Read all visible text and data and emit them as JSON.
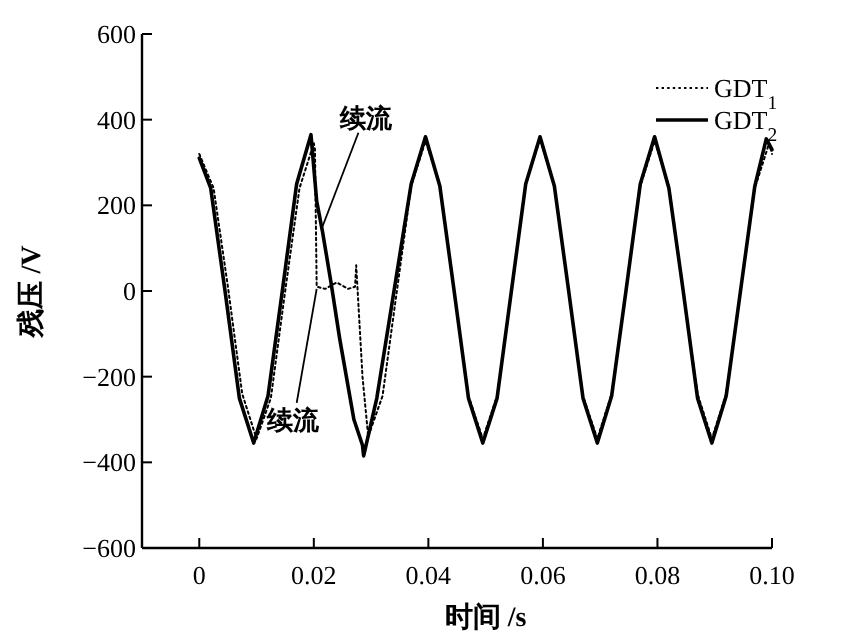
{
  "chart_data": {
    "type": "line",
    "xlabel": "时间 /s",
    "ylabel": "残压 /V",
    "xlim": [
      -0.01,
      0.1
    ],
    "xticks": [
      0,
      0.02,
      0.04,
      0.06,
      0.08,
      {
        "value": 0.1,
        "label": "0.10"
      }
    ],
    "ylim": [
      -600,
      600
    ],
    "yticks": [
      -600,
      -400,
      -200,
      0,
      200,
      400,
      600
    ],
    "grid": false,
    "legend": "top right",
    "marker": "none",
    "series": [
      {
        "name": "GDT$_{1}$",
        "color": "#000000",
        "line_style": "dotted",
        "x": [
          0,
          0.0025,
          0.005,
          0.0075,
          0.01,
          0.0125,
          0.015,
          0.0175,
          0.02,
          0.0202,
          0.0205,
          0.022,
          0.024,
          0.026,
          0.0272,
          0.0274,
          0.0285,
          0.0295,
          0.032,
          0.0345,
          0.037,
          0.0395,
          0.042,
          0.0445,
          0.047,
          0.0495,
          0.052,
          0.0545,
          0.057,
          0.0595,
          0.062,
          0.0645,
          0.067,
          0.0695,
          0.072,
          0.0745,
          0.077,
          0.0795,
          0.082,
          0.0845,
          0.087,
          0.0895,
          0.092,
          0.0945,
          0.097,
          0.0995,
          0.1
        ],
        "values": [
          320,
          240,
          10,
          -240,
          -345,
          -250,
          0,
          240,
          345,
          330,
          10,
          5,
          20,
          5,
          10,
          60,
          -200,
          -340,
          -245,
          0,
          245,
          350,
          250,
          0,
          -245,
          -345,
          -245,
          0,
          250,
          355,
          245,
          0,
          -245,
          -345,
          -240,
          0,
          245,
          350,
          245,
          0,
          -240,
          -345,
          -240,
          0,
          240,
          345,
          320
        ]
      },
      {
        "name": "GDT$_{2}$",
        "color": "#000000",
        "line_style": "solid",
        "x": [
          0,
          0.002,
          0.0045,
          0.007,
          0.0095,
          0.012,
          0.0145,
          0.017,
          0.0195,
          0.0205,
          0.0215,
          0.023,
          0.0245,
          0.027,
          0.0285,
          0.0287,
          0.031,
          0.034,
          0.037,
          0.0395,
          0.042,
          0.0445,
          0.047,
          0.0495,
          0.052,
          0.0545,
          0.057,
          0.0595,
          0.062,
          0.0645,
          0.067,
          0.0695,
          0.072,
          0.0745,
          0.077,
          0.0795,
          0.082,
          0.0845,
          0.087,
          0.0895,
          0.092,
          0.0945,
          0.097,
          0.099,
          0.1
        ],
        "values": [
          310,
          240,
          0,
          -250,
          -355,
          -245,
          0,
          250,
          365,
          210,
          140,
          20,
          -110,
          -300,
          -360,
          -385,
          -250,
          0,
          250,
          360,
          245,
          0,
          -250,
          -355,
          -250,
          0,
          250,
          360,
          245,
          0,
          -250,
          -355,
          -245,
          0,
          250,
          360,
          240,
          0,
          -250,
          -355,
          -245,
          0,
          245,
          355,
          330
        ]
      }
    ],
    "annotations": [
      {
        "text": "续流",
        "x": 0.0215,
        "y": 150
      },
      {
        "text": "续流",
        "x": 0.0205,
        "y": 5
      }
    ]
  }
}
